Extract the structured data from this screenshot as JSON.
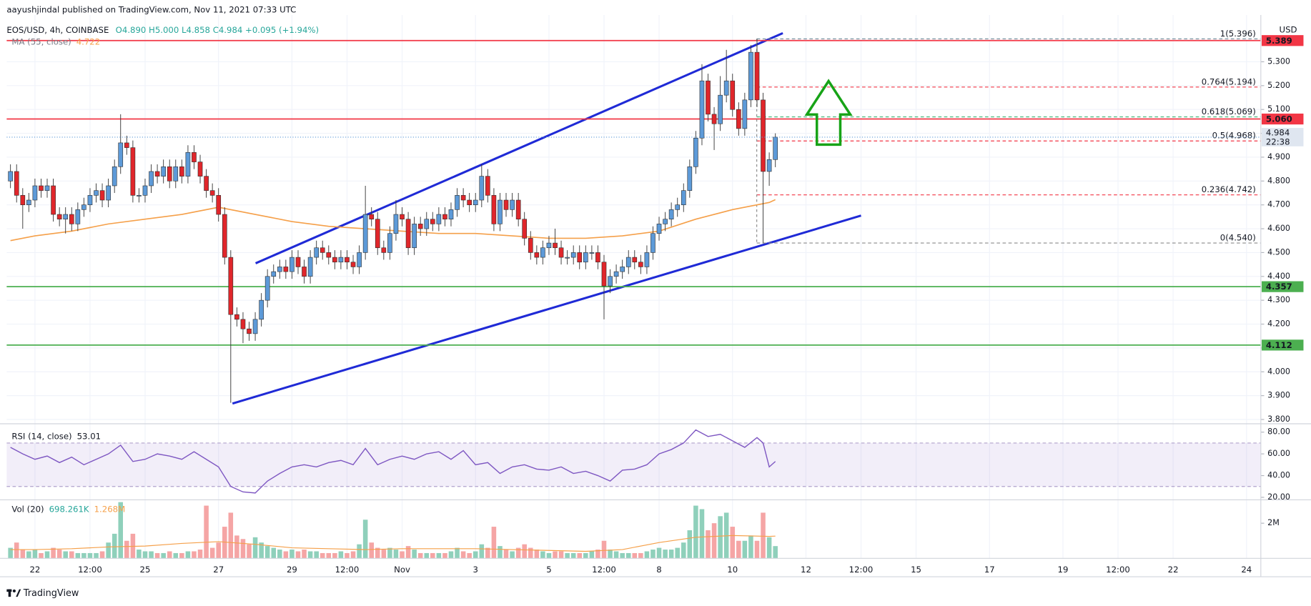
{
  "header": {
    "published": "aayushjindal published on TradingView.com, Nov 11, 2021 07:33 UTC"
  },
  "footer": {
    "brand": "TradingView"
  },
  "chart_data": [
    {
      "type": "candlestick",
      "title": "EOS/USD, 4h, COINBASE",
      "ohlc_text": "O4.890 H5.000 L4.858 C4.984 +0.095 (+1.94%)",
      "axis_unit": "USD",
      "up_color": "#5d9ad8",
      "down_color": "#e0262b",
      "xlim": [
        21.23,
        55.39
      ],
      "xticks": [
        22,
        {
          "value": 23.5,
          "label": "12:00"
        },
        25,
        27,
        29,
        {
          "value": 30.5,
          "label": "12:00"
        },
        {
          "value": 32,
          "label": "Nov"
        },
        {
          "value": 34,
          "label": "3"
        },
        {
          "value": 36,
          "label": "5"
        },
        {
          "value": 37.5,
          "label": "12:00"
        },
        {
          "value": 39,
          "label": "8"
        },
        {
          "value": 41,
          "label": "10"
        },
        {
          "value": 43,
          "label": "12"
        },
        {
          "value": 44.5,
          "label": "12:00"
        },
        {
          "value": 46,
          "label": "15"
        },
        {
          "value": 48,
          "label": "17"
        },
        {
          "value": 50,
          "label": "19"
        },
        {
          "value": 51.5,
          "label": "12:00"
        },
        {
          "value": 53,
          "label": "22"
        },
        {
          "value": 55,
          "label": "24"
        }
      ],
      "ylim": [
        3.782,
        5.496
      ],
      "yticks": [
        {
          "value": 3.8,
          "label": "3.800"
        },
        {
          "value": 3.9,
          "label": "3.900"
        },
        {
          "value": 4.0,
          "label": "4.000"
        },
        {
          "value": 4.1,
          "label": "4.100"
        },
        {
          "value": 4.2,
          "label": "4.200"
        },
        {
          "value": 4.3,
          "label": "4.300"
        },
        {
          "value": 4.4,
          "label": "4.400"
        },
        {
          "value": 4.5,
          "label": "4.500"
        },
        {
          "value": 4.6,
          "label": "4.600"
        },
        {
          "value": 4.7,
          "label": "4.700"
        },
        {
          "value": 4.8,
          "label": "4.800"
        },
        {
          "value": 4.9,
          "label": "4.900"
        },
        {
          "value": 5.0,
          "label": "5.000"
        },
        {
          "value": 5.1,
          "label": "5.100"
        },
        {
          "value": 5.2,
          "label": "5.200"
        },
        {
          "value": 5.3,
          "label": "5.300"
        }
      ],
      "grid": true,
      "x": [
        21.333,
        21.5,
        21.667,
        21.833,
        22,
        22.167,
        22.333,
        22.5,
        22.667,
        22.833,
        23,
        23.167,
        23.333,
        23.5,
        23.667,
        23.833,
        24,
        24.167,
        24.333,
        24.5,
        24.667,
        24.833,
        25,
        25.167,
        25.333,
        25.5,
        25.667,
        25.833,
        26,
        26.167,
        26.333,
        26.5,
        26.667,
        26.833,
        27,
        27.167,
        27.333,
        27.5,
        27.667,
        27.833,
        28,
        28.167,
        28.333,
        28.5,
        28.667,
        28.833,
        29,
        29.167,
        29.333,
        29.5,
        29.667,
        29.833,
        30,
        30.167,
        30.333,
        30.5,
        30.667,
        30.833,
        31,
        31.167,
        31.333,
        31.5,
        31.667,
        31.833,
        32,
        32.167,
        32.333,
        32.5,
        32.667,
        32.833,
        33,
        33.167,
        33.333,
        33.5,
        33.667,
        33.833,
        34,
        34.167,
        34.333,
        34.5,
        34.667,
        34.833,
        35,
        35.167,
        35.333,
        35.5,
        35.667,
        35.833,
        36,
        36.167,
        36.333,
        36.5,
        36.667,
        36.833,
        37,
        37.167,
        37.333,
        37.5,
        37.667,
        37.833,
        38,
        38.167,
        38.333,
        38.5,
        38.667,
        38.833,
        39,
        39.167,
        39.333,
        39.5,
        39.667,
        39.833,
        40,
        40.167,
        40.333,
        40.5,
        40.667,
        40.833,
        41,
        41.167,
        41.333,
        41.5,
        41.667,
        41.833,
        42,
        42.167
      ],
      "open": [
        4.8,
        4.84,
        4.74,
        4.7,
        4.72,
        4.78,
        4.76,
        4.78,
        4.66,
        4.64,
        4.66,
        4.62,
        4.68,
        4.7,
        4.74,
        4.76,
        4.72,
        4.78,
        4.86,
        4.96,
        4.94,
        4.74,
        4.74,
        4.78,
        4.84,
        4.82,
        4.86,
        4.8,
        4.86,
        4.82,
        4.92,
        4.88,
        4.82,
        4.76,
        4.74,
        4.66,
        4.48,
        4.24,
        4.22,
        4.18,
        4.16,
        4.22,
        4.3,
        4.4,
        4.42,
        4.44,
        4.42,
        4.48,
        4.44,
        4.4,
        4.48,
        4.52,
        4.5,
        4.48,
        4.46,
        4.48,
        4.46,
        4.44,
        4.5,
        4.66,
        4.64,
        4.52,
        4.5,
        4.58,
        4.66,
        4.64,
        4.52,
        4.62,
        4.6,
        4.64,
        4.62,
        4.66,
        4.64,
        4.68,
        4.74,
        4.72,
        4.7,
        4.72,
        4.82,
        4.74,
        4.62,
        4.72,
        4.68,
        4.72,
        4.64,
        4.56,
        4.5,
        4.48,
        4.52,
        4.54,
        4.52,
        4.48,
        4.48,
        4.5,
        4.46,
        4.5,
        4.5,
        4.46,
        4.36,
        4.4,
        4.42,
        4.44,
        4.48,
        4.46,
        4.44,
        4.5,
        4.58,
        4.62,
        4.64,
        4.68,
        4.7,
        4.76,
        4.86,
        4.98,
        5.22,
        5.08,
        5.04,
        5.16,
        5.22,
        5.1,
        5.02,
        5.14,
        5.34,
        5.14,
        4.84,
        4.89
      ],
      "high": [
        4.87,
        4.87,
        4.77,
        4.75,
        4.81,
        4.81,
        4.81,
        4.81,
        4.69,
        4.69,
        4.69,
        4.71,
        4.73,
        4.77,
        4.79,
        4.79,
        4.81,
        4.89,
        5.08,
        4.99,
        4.97,
        4.77,
        4.81,
        4.87,
        4.87,
        4.89,
        4.89,
        4.89,
        4.89,
        4.95,
        4.95,
        4.91,
        4.85,
        4.79,
        4.77,
        4.69,
        4.51,
        4.27,
        4.25,
        4.21,
        4.25,
        4.33,
        4.43,
        4.45,
        4.47,
        4.47,
        4.51,
        4.51,
        4.47,
        4.51,
        4.55,
        4.55,
        4.53,
        4.51,
        4.51,
        4.51,
        4.49,
        4.53,
        4.78,
        4.69,
        4.67,
        4.55,
        4.61,
        4.72,
        4.69,
        4.67,
        4.65,
        4.65,
        4.67,
        4.67,
        4.69,
        4.69,
        4.71,
        4.77,
        4.77,
        4.75,
        4.75,
        4.87,
        4.85,
        4.77,
        4.75,
        4.75,
        4.75,
        4.75,
        4.67,
        4.59,
        4.53,
        4.55,
        4.57,
        4.6,
        4.55,
        4.51,
        4.53,
        4.53,
        4.53,
        4.53,
        4.53,
        4.49,
        4.43,
        4.45,
        4.47,
        4.51,
        4.51,
        4.49,
        4.53,
        4.61,
        4.65,
        4.67,
        4.71,
        4.73,
        4.79,
        4.89,
        5.01,
        5.29,
        5.25,
        5.11,
        5.24,
        5.35,
        5.25,
        5.13,
        5.17,
        5.37,
        5.396,
        5.17,
        4.92,
        5.0
      ],
      "low": [
        4.77,
        4.71,
        4.6,
        4.67,
        4.69,
        4.73,
        4.73,
        4.63,
        4.61,
        4.58,
        4.59,
        4.59,
        4.65,
        4.67,
        4.71,
        4.69,
        4.69,
        4.75,
        4.83,
        4.91,
        4.71,
        4.71,
        4.71,
        4.75,
        4.79,
        4.79,
        4.77,
        4.77,
        4.79,
        4.79,
        4.85,
        4.79,
        4.73,
        4.71,
        4.63,
        4.45,
        3.87,
        4.19,
        4.12,
        4.13,
        4.13,
        4.19,
        4.27,
        4.37,
        4.39,
        4.39,
        4.39,
        4.41,
        4.37,
        4.37,
        4.45,
        4.47,
        4.45,
        4.43,
        4.43,
        4.43,
        4.41,
        4.41,
        4.47,
        4.61,
        4.49,
        4.47,
        4.47,
        4.55,
        4.61,
        4.49,
        4.49,
        4.57,
        4.57,
        4.59,
        4.59,
        4.61,
        4.61,
        4.65,
        4.69,
        4.67,
        4.67,
        4.69,
        4.71,
        4.59,
        4.59,
        4.65,
        4.65,
        4.61,
        4.53,
        4.47,
        4.45,
        4.45,
        4.49,
        4.49,
        4.45,
        4.45,
        4.45,
        4.43,
        4.43,
        4.47,
        4.43,
        4.22,
        4.33,
        4.37,
        4.39,
        4.41,
        4.43,
        4.41,
        4.41,
        4.47,
        4.55,
        4.59,
        4.61,
        4.65,
        4.67,
        4.73,
        4.83,
        4.95,
        5.05,
        4.93,
        5.01,
        5.13,
        5.07,
        4.99,
        4.99,
        5.11,
        5.11,
        4.54,
        4.78,
        4.858
      ],
      "close": [
        4.84,
        4.74,
        4.7,
        4.72,
        4.78,
        4.76,
        4.78,
        4.66,
        4.64,
        4.66,
        4.62,
        4.68,
        4.7,
        4.74,
        4.76,
        4.72,
        4.78,
        4.86,
        4.96,
        4.94,
        4.74,
        4.74,
        4.78,
        4.84,
        4.82,
        4.86,
        4.8,
        4.86,
        4.82,
        4.92,
        4.88,
        4.82,
        4.76,
        4.74,
        4.66,
        4.48,
        4.24,
        4.22,
        4.18,
        4.16,
        4.22,
        4.3,
        4.4,
        4.42,
        4.44,
        4.42,
        4.48,
        4.44,
        4.4,
        4.48,
        4.52,
        4.5,
        4.48,
        4.46,
        4.48,
        4.46,
        4.44,
        4.5,
        4.66,
        4.64,
        4.52,
        4.5,
        4.58,
        4.66,
        4.64,
        4.52,
        4.62,
        4.6,
        4.64,
        4.62,
        4.66,
        4.64,
        4.68,
        4.74,
        4.72,
        4.7,
        4.72,
        4.82,
        4.74,
        4.62,
        4.72,
        4.68,
        4.72,
        4.64,
        4.56,
        4.5,
        4.48,
        4.52,
        4.54,
        4.52,
        4.48,
        4.48,
        4.5,
        4.46,
        4.5,
        4.5,
        4.46,
        4.36,
        4.4,
        4.42,
        4.44,
        4.48,
        4.46,
        4.44,
        4.5,
        4.58,
        4.62,
        4.64,
        4.68,
        4.7,
        4.76,
        4.86,
        4.98,
        5.22,
        5.08,
        5.04,
        5.16,
        5.22,
        5.1,
        5.02,
        5.14,
        5.34,
        5.14,
        4.84,
        4.89,
        4.984
      ],
      "last_color": "#dfe6f0",
      "countdown": "22:38",
      "ma": {
        "name": "MA (55, close)",
        "color": "#f5a04a",
        "x": [
          21.333,
          22,
          23,
          24,
          25,
          26,
          27,
          28,
          29,
          30,
          31,
          32,
          33,
          34,
          35,
          36,
          37,
          38,
          39,
          40,
          41,
          42,
          42.167
        ],
        "values": [
          4.55,
          4.57,
          4.59,
          4.62,
          4.64,
          4.66,
          4.69,
          4.66,
          4.63,
          4.61,
          4.6,
          4.59,
          4.58,
          4.58,
          4.57,
          4.56,
          4.56,
          4.57,
          4.59,
          4.64,
          4.68,
          4.71,
          4.722
        ]
      },
      "levels": [
        {
          "value": 5.389,
          "color": "#f23645"
        },
        {
          "value": 5.06,
          "label": "5.060",
          "color": "#f23645"
        },
        {
          "value": 4.357,
          "color": "#4caf50"
        },
        {
          "value": 4.112,
          "color": "#4caf50"
        }
      ],
      "fib_start": 41.66,
      "fib": [
        {
          "label": "1(5.396)",
          "value": 5.396,
          "color": "#6a8a9a"
        },
        {
          "label": "0.764(5.194)",
          "value": 5.194,
          "color": "#f23645"
        },
        {
          "label": "0.618(5.069)",
          "value": 5.069,
          "color": "#3bb273"
        },
        {
          "label": "0.5(4.968)",
          "value": 4.968,
          "color": "#f23645"
        },
        {
          "label": "0.236(4.742)",
          "value": 4.742,
          "color": "#f23645"
        },
        {
          "label": "0(4.540)",
          "value": 4.54,
          "color": "#8a8a8a"
        }
      ],
      "trendlines": [
        {
          "x": [
            28.01,
            42.37
          ],
          "y": [
            4.455,
            5.42
          ],
          "color": "#1f2ad6"
        },
        {
          "x": [
            27.38,
            44.5
          ],
          "y": [
            3.867,
            4.655
          ],
          "color": "#1f2ad6"
        }
      ]
    },
    {
      "type": "line",
      "title": "RSI (14, close)",
      "color": "#7e57c2",
      "ylim": [
        17.7,
        87.7
      ],
      "yticks": [
        {
          "value": 20,
          "label": "20.00"
        },
        {
          "value": 40,
          "label": "40.00"
        },
        {
          "value": 60,
          "label": "60.00"
        },
        {
          "value": 80,
          "label": "80.00"
        }
      ],
      "band": [
        30,
        70
      ],
      "x": [
        21.333,
        21.667,
        22,
        22.333,
        22.667,
        23,
        23.333,
        23.667,
        24,
        24.333,
        24.667,
        25,
        25.333,
        25.667,
        26,
        26.333,
        26.667,
        27,
        27.333,
        27.667,
        28,
        28.333,
        28.667,
        29,
        29.333,
        29.667,
        30,
        30.333,
        30.667,
        31,
        31.333,
        31.667,
        32,
        32.333,
        32.667,
        33,
        33.333,
        33.667,
        34,
        34.333,
        34.667,
        35,
        35.333,
        35.667,
        36,
        36.333,
        36.667,
        37,
        37.333,
        37.667,
        38,
        38.333,
        38.667,
        39,
        39.333,
        39.667,
        40,
        40.333,
        40.667,
        41,
        41.333,
        41.667,
        41.833,
        42,
        42.167
      ],
      "values": [
        66,
        60,
        55,
        58,
        52,
        57,
        50,
        55,
        60,
        68,
        53,
        55,
        60,
        58,
        55,
        62,
        55,
        48,
        30,
        25,
        24,
        35,
        42,
        48,
        50,
        48,
        52,
        54,
        50,
        65,
        50,
        55,
        58,
        55,
        60,
        62,
        55,
        63,
        50,
        52,
        42,
        48,
        50,
        46,
        45,
        48,
        42,
        44,
        40,
        35,
        45,
        46,
        50,
        60,
        64,
        70,
        82,
        76,
        78,
        72,
        66,
        75,
        70,
        48,
        53.01
      ]
    },
    {
      "type": "bar",
      "title": "Vol (20)",
      "legend_values": [
        "698.261K",
        "1.268M"
      ],
      "up_color": "#8fd0bb",
      "down_color": "#f5a5a5",
      "ylim": [
        0,
        3330000
      ],
      "yticks": [
        {
          "value": 2000000,
          "label": "2M"
        }
      ],
      "values": [
        600000,
        900000,
        500000,
        400000,
        500000,
        300000,
        400000,
        600000,
        500000,
        400000,
        400000,
        300000,
        300000,
        300000,
        300000,
        400000,
        900000,
        1400000,
        3200000,
        1000000,
        1400000,
        500000,
        400000,
        400000,
        300000,
        300000,
        400000,
        300000,
        300000,
        400000,
        400000,
        500000,
        3000000,
        600000,
        900000,
        1800000,
        2600000,
        1300000,
        1100000,
        800000,
        1200000,
        900000,
        700000,
        600000,
        500000,
        400000,
        500000,
        400000,
        500000,
        400000,
        400000,
        300000,
        300000,
        300000,
        400000,
        300000,
        400000,
        800000,
        2200000,
        900000,
        600000,
        500000,
        600000,
        500000,
        400000,
        700000,
        500000,
        300000,
        300000,
        300000,
        300000,
        300000,
        400000,
        600000,
        400000,
        300000,
        400000,
        800000,
        600000,
        1800000,
        700000,
        500000,
        400000,
        600000,
        800000,
        600000,
        500000,
        400000,
        300000,
        400000,
        400000,
        300000,
        300000,
        300000,
        300000,
        400000,
        500000,
        1000000,
        500000,
        400000,
        300000,
        300000,
        300000,
        300000,
        400000,
        500000,
        600000,
        500000,
        500000,
        600000,
        900000,
        1600000,
        3000000,
        2800000,
        1600000,
        2000000,
        2400000,
        2600000,
        1800000,
        1000000,
        1000000,
        1300000,
        1000000,
        2600000,
        1200000,
        698261
      ],
      "ma": {
        "color": "#f5a04a",
        "x": [
          21.333,
          22,
          23,
          24,
          25,
          26,
          27,
          28,
          29,
          30,
          31,
          32,
          33,
          34,
          35,
          36,
          37,
          38,
          39,
          40,
          41,
          42,
          42.167
        ],
        "values": [
          500000,
          500000,
          550000,
          650000,
          700000,
          850000,
          950000,
          800000,
          600000,
          550000,
          500000,
          550000,
          550000,
          550000,
          500000,
          450000,
          400000,
          500000,
          900000,
          1200000,
          1300000,
          1250000,
          1268000
        ]
      }
    }
  ]
}
